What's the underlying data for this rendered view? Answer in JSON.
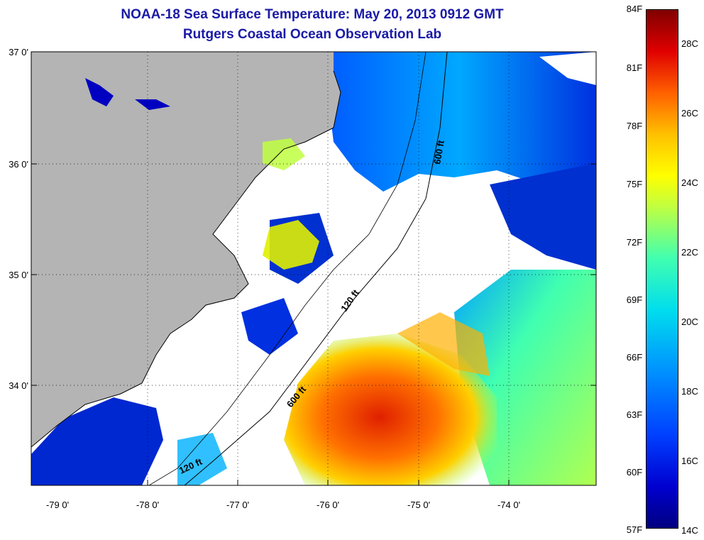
{
  "title": {
    "line1": "NOAA-18 Sea Surface Temperature:  May 20, 2013 0912 GMT",
    "line2": "Rutgers Coastal Ocean Observation Lab"
  },
  "map": {
    "lat_labels": [
      "37 0'",
      "36 0'",
      "35 0'",
      "34 0'"
    ],
    "lon_labels": [
      "-79 0'",
      "-78 0'",
      "-77 0'",
      "-76 0'",
      "-75 0'",
      "-74 0'"
    ],
    "isobath_labels": [
      "600 ft",
      "120 ft",
      "600 ft",
      "120 ft"
    ],
    "colors": {
      "land": "#b4b4b4",
      "cloud": "#ffffff",
      "cold": "#0000c0",
      "warm": "#e02000"
    }
  },
  "colorbar": {
    "f_labels": [
      "84F",
      "81F",
      "78F",
      "75F",
      "72F",
      "69F",
      "66F",
      "63F",
      "60F",
      "57F"
    ],
    "c_labels": [
      "28C",
      "26C",
      "24C",
      "22C",
      "20C",
      "18C",
      "16C",
      "14C"
    ],
    "range_f": [
      57,
      84
    ],
    "range_c": [
      14,
      29
    ]
  }
}
